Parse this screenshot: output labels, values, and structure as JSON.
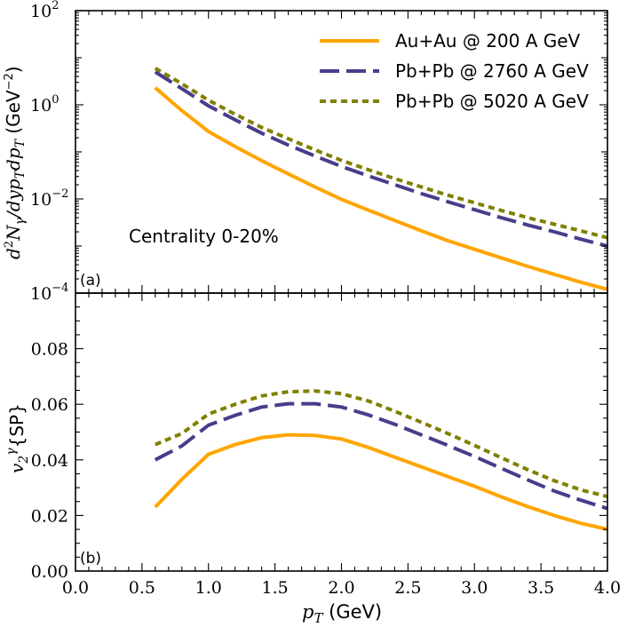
{
  "colors": {
    "auau200": "#FFA500",
    "pbpb2760": "#483D8B",
    "pbpb5020": "#808000"
  },
  "chart_data": [
    {
      "id": "a",
      "type": "line",
      "panel_label": "(a)",
      "annotation": "Centrality 0-20%",
      "xlabel": "p_T (GeV)",
      "ylabel": "d²N_γ/dy p_T dp_T (GeV⁻²)",
      "yscale": "log",
      "xlim": [
        0.0,
        4.0
      ],
      "ylim": [
        0.0001,
        100
      ],
      "y_tick_labels": [
        {
          "value": 100,
          "exp": "2"
        },
        {
          "value": 1,
          "exp": "0"
        },
        {
          "value": 0.01,
          "exp": "−2"
        },
        {
          "value": 0.0001,
          "exp": "−4"
        }
      ],
      "x": [
        0.6,
        0.8,
        1.0,
        1.2,
        1.4,
        1.6,
        1.8,
        2.0,
        2.2,
        2.4,
        2.6,
        2.8,
        3.0,
        3.2,
        3.4,
        3.6,
        3.8,
        4.0
      ],
      "series": [
        {
          "key": "auau200",
          "name": "Au+Au @ 200 A GeV",
          "dash": "solid",
          "values": [
            2.3,
            0.75,
            0.27,
            0.13,
            0.065,
            0.034,
            0.018,
            0.0098,
            0.0058,
            0.0035,
            0.0021,
            0.0013,
            0.00085,
            0.00056,
            0.00037,
            0.00025,
            0.00017,
            0.00012
          ]
        },
        {
          "key": "pbpb2760",
          "name": "Pb+Pb @ 2760 A GeV",
          "dash": "dashed",
          "values": [
            5.0,
            2.2,
            0.95,
            0.48,
            0.25,
            0.14,
            0.082,
            0.049,
            0.031,
            0.02,
            0.013,
            0.0087,
            0.0059,
            0.004,
            0.0028,
            0.002,
            0.0014,
            0.001
          ]
        },
        {
          "key": "pbpb5020",
          "name": "Pb+Pb @ 5020 A GeV",
          "dash": "dotted",
          "values": [
            6.0,
            2.8,
            1.25,
            0.63,
            0.33,
            0.19,
            0.11,
            0.066,
            0.042,
            0.027,
            0.018,
            0.012,
            0.0083,
            0.0057,
            0.004,
            0.0029,
            0.0021,
            0.0015
          ]
        }
      ]
    },
    {
      "id": "b",
      "type": "line",
      "panel_label": "(b)",
      "xlabel": "p_T (GeV)",
      "ylabel": "v₂^γ{SP}",
      "yscale": "linear",
      "xlim": [
        0.0,
        4.0
      ],
      "ylim": [
        0.0,
        0.1
      ],
      "x_tick_labels": [
        "0.0",
        "0.5",
        "1.0",
        "1.5",
        "2.0",
        "2.5",
        "3.0",
        "3.5",
        "4.0"
      ],
      "y_tick_labels": [
        "0.00",
        "0.02",
        "0.04",
        "0.06",
        "0.08"
      ],
      "x": [
        0.6,
        0.8,
        1.0,
        1.2,
        1.4,
        1.6,
        1.8,
        2.0,
        2.2,
        2.4,
        2.6,
        2.8,
        3.0,
        3.2,
        3.4,
        3.6,
        3.8,
        4.0
      ],
      "series": [
        {
          "key": "auau200",
          "name": "Au+Au @ 200 A GeV",
          "dash": "solid",
          "values": [
            0.023,
            0.033,
            0.042,
            0.0455,
            0.048,
            0.049,
            0.0488,
            0.0475,
            0.0445,
            0.041,
            0.0375,
            0.034,
            0.0305,
            0.0267,
            0.0232,
            0.02,
            0.0172,
            0.015
          ]
        },
        {
          "key": "pbpb2760",
          "name": "Pb+Pb @ 2760 A GeV",
          "dash": "dashed",
          "values": [
            0.04,
            0.045,
            0.0525,
            0.056,
            0.059,
            0.0602,
            0.0602,
            0.059,
            0.0562,
            0.0528,
            0.049,
            0.0452,
            0.0412,
            0.037,
            0.0328,
            0.0288,
            0.0255,
            0.0225
          ]
        },
        {
          "key": "pbpb5020",
          "name": "Pb+Pb @ 5020 A GeV",
          "dash": "dotted",
          "values": [
            0.0455,
            0.0495,
            0.0565,
            0.06,
            0.063,
            0.0645,
            0.0648,
            0.0638,
            0.0612,
            0.0575,
            0.0535,
            0.0495,
            0.0452,
            0.0408,
            0.0365,
            0.0325,
            0.0292,
            0.0268
          ]
        }
      ]
    }
  ]
}
